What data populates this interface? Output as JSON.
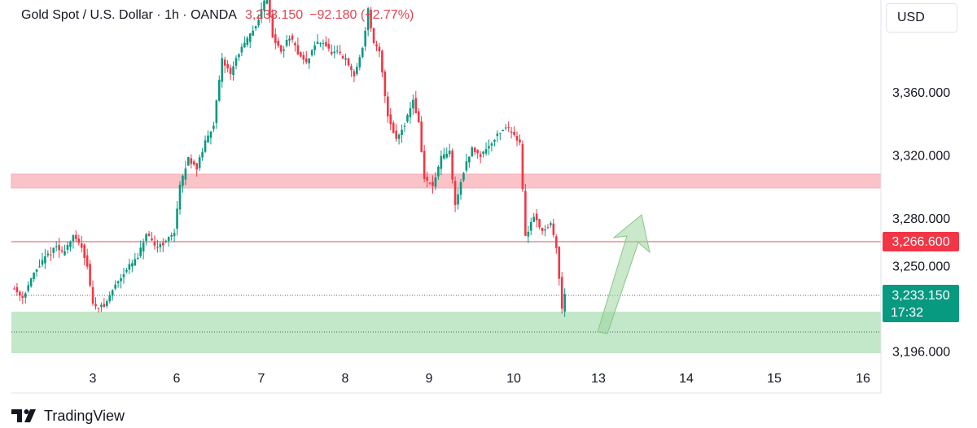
{
  "header": {
    "symbol": "Gold Spot / U.S. Dollar · 1h · OANDA",
    "last_price": "3,233.150",
    "change": "−92.180 (−2.77%)"
  },
  "currency_button": {
    "label": "USD"
  },
  "branding": {
    "name": "TradingView"
  },
  "colors": {
    "up": "#089981",
    "down": "#f23645",
    "resistance_zone": "#f8b9be",
    "support_zone": "#b9e3bf",
    "arrow": "#9fd59f",
    "level_line": "#d8505c"
  },
  "chart_data": {
    "type": "candlestick",
    "symbol": "XAUUSD",
    "timeframe": "1h",
    "x_tick_labels": [
      "3",
      "6",
      "7",
      "8",
      "9",
      "10",
      "13",
      "14",
      "15",
      "16"
    ],
    "y_tick_labels": [
      "3,360.000",
      "3,320.000",
      "3,280.000",
      "3,250.000",
      "3,196.000"
    ],
    "y_range": [
      3188,
      3420
    ],
    "price_labels": {
      "level": "3,266.600",
      "last": "3,233.150",
      "countdown": "17:32"
    },
    "levels": {
      "horizontal_line": 3266.6,
      "last_price_dotted": 3233.15,
      "support_dotted": 3211
    },
    "zones": {
      "resistance": [
        3300,
        3309
      ],
      "support": [
        3197,
        3223
      ]
    },
    "projection_arrow": {
      "from": {
        "session": "13",
        "price": 3212
      },
      "to": {
        "session": "between 13 and 14",
        "price": 3283
      }
    },
    "price_path": [
      [
        0,
        3237
      ],
      [
        4,
        3230
      ],
      [
        8,
        3245
      ],
      [
        12,
        3255
      ],
      [
        16,
        3262
      ],
      [
        18,
        3258
      ],
      [
        22,
        3268
      ],
      [
        25,
        3262
      ],
      [
        27,
        3250
      ],
      [
        29,
        3225
      ],
      [
        33,
        3224
      ],
      [
        37,
        3238
      ],
      [
        41,
        3248
      ],
      [
        45,
        3255
      ],
      [
        48,
        3270
      ],
      [
        51,
        3262
      ],
      [
        55,
        3265
      ],
      [
        58,
        3272
      ],
      [
        60,
        3300
      ],
      [
        63,
        3318
      ],
      [
        66,
        3312
      ],
      [
        69,
        3328
      ],
      [
        72,
        3340
      ],
      [
        75,
        3380
      ],
      [
        78,
        3372
      ],
      [
        81,
        3385
      ],
      [
        84,
        3393
      ],
      [
        87,
        3402
      ],
      [
        89,
        3412
      ],
      [
        91,
        3422
      ],
      [
        93,
        3395
      ],
      [
        96,
        3385
      ],
      [
        99,
        3395
      ],
      [
        102,
        3385
      ],
      [
        105,
        3378
      ],
      [
        108,
        3390
      ],
      [
        111,
        3392
      ],
      [
        114,
        3384
      ],
      [
        116,
        3385
      ],
      [
        119,
        3380
      ],
      [
        122,
        3370
      ],
      [
        125,
        3388
      ],
      [
        127,
        3412
      ],
      [
        129,
        3390
      ],
      [
        131,
        3385
      ],
      [
        134,
        3345
      ],
      [
        137,
        3330
      ],
      [
        140,
        3340
      ],
      [
        143,
        3355
      ],
      [
        145,
        3340
      ],
      [
        147,
        3305
      ],
      [
        150,
        3300
      ],
      [
        153,
        3318
      ],
      [
        156,
        3322
      ],
      [
        158,
        3288
      ],
      [
        161,
        3310
      ],
      [
        164,
        3324
      ],
      [
        167,
        3320
      ],
      [
        170,
        3326
      ],
      [
        173,
        3333
      ],
      [
        176,
        3338
      ],
      [
        179,
        3333
      ],
      [
        181,
        3328
      ],
      [
        183,
        3268
      ],
      [
        186,
        3282
      ],
      [
        189,
        3272
      ],
      [
        192,
        3276
      ],
      [
        194,
        3262
      ],
      [
        196,
        3222
      ],
      [
        197,
        3233
      ]
    ]
  }
}
